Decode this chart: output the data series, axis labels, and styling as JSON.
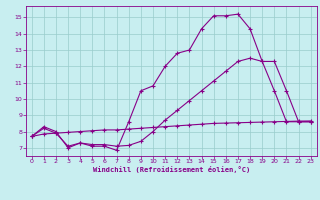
{
  "bg_color": "#c8eef0",
  "line_color": "#880088",
  "grid_color": "#99cccc",
  "xlabel": "Windchill (Refroidissement éolien,°C)",
  "xlim": [
    -0.5,
    23.5
  ],
  "ylim": [
    6.5,
    15.7
  ],
  "yticks": [
    7,
    8,
    9,
    10,
    11,
    12,
    13,
    14,
    15
  ],
  "xticks": [
    0,
    1,
    2,
    3,
    4,
    5,
    6,
    7,
    8,
    9,
    10,
    11,
    12,
    13,
    14,
    15,
    16,
    17,
    18,
    19,
    20,
    21,
    22,
    23
  ],
  "line1_x": [
    0,
    1,
    2,
    3,
    4,
    5,
    6,
    7,
    8,
    9,
    10,
    11,
    12,
    13,
    14,
    15,
    16,
    17,
    18,
    19,
    20,
    21,
    22,
    23
  ],
  "line1_y": [
    7.7,
    8.3,
    8.0,
    7.0,
    7.3,
    7.1,
    7.1,
    6.85,
    8.6,
    10.5,
    10.8,
    12.0,
    12.8,
    13.0,
    14.3,
    15.1,
    15.1,
    15.2,
    14.3,
    12.3,
    10.5,
    8.6,
    8.6,
    8.6
  ],
  "line2_x": [
    0,
    1,
    2,
    3,
    4,
    5,
    6,
    7,
    8,
    9,
    10,
    11,
    12,
    13,
    14,
    15,
    16,
    17,
    18,
    19,
    20,
    21,
    22,
    23
  ],
  "line2_y": [
    7.7,
    8.2,
    7.9,
    7.1,
    7.3,
    7.2,
    7.2,
    7.1,
    7.15,
    7.4,
    8.0,
    8.7,
    9.3,
    9.9,
    10.5,
    11.1,
    11.7,
    12.3,
    12.5,
    12.3,
    12.3,
    10.5,
    8.6,
    8.6
  ],
  "line3_x": [
    0,
    1,
    2,
    3,
    4,
    5,
    6,
    7,
    8,
    9,
    10,
    11,
    12,
    13,
    14,
    15,
    16,
    17,
    18,
    19,
    20,
    21,
    22,
    23
  ],
  "line3_y": [
    7.7,
    7.85,
    7.9,
    7.95,
    8.0,
    8.05,
    8.1,
    8.1,
    8.15,
    8.2,
    8.25,
    8.3,
    8.35,
    8.4,
    8.45,
    8.5,
    8.52,
    8.54,
    8.56,
    8.58,
    8.6,
    8.62,
    8.64,
    8.65
  ]
}
